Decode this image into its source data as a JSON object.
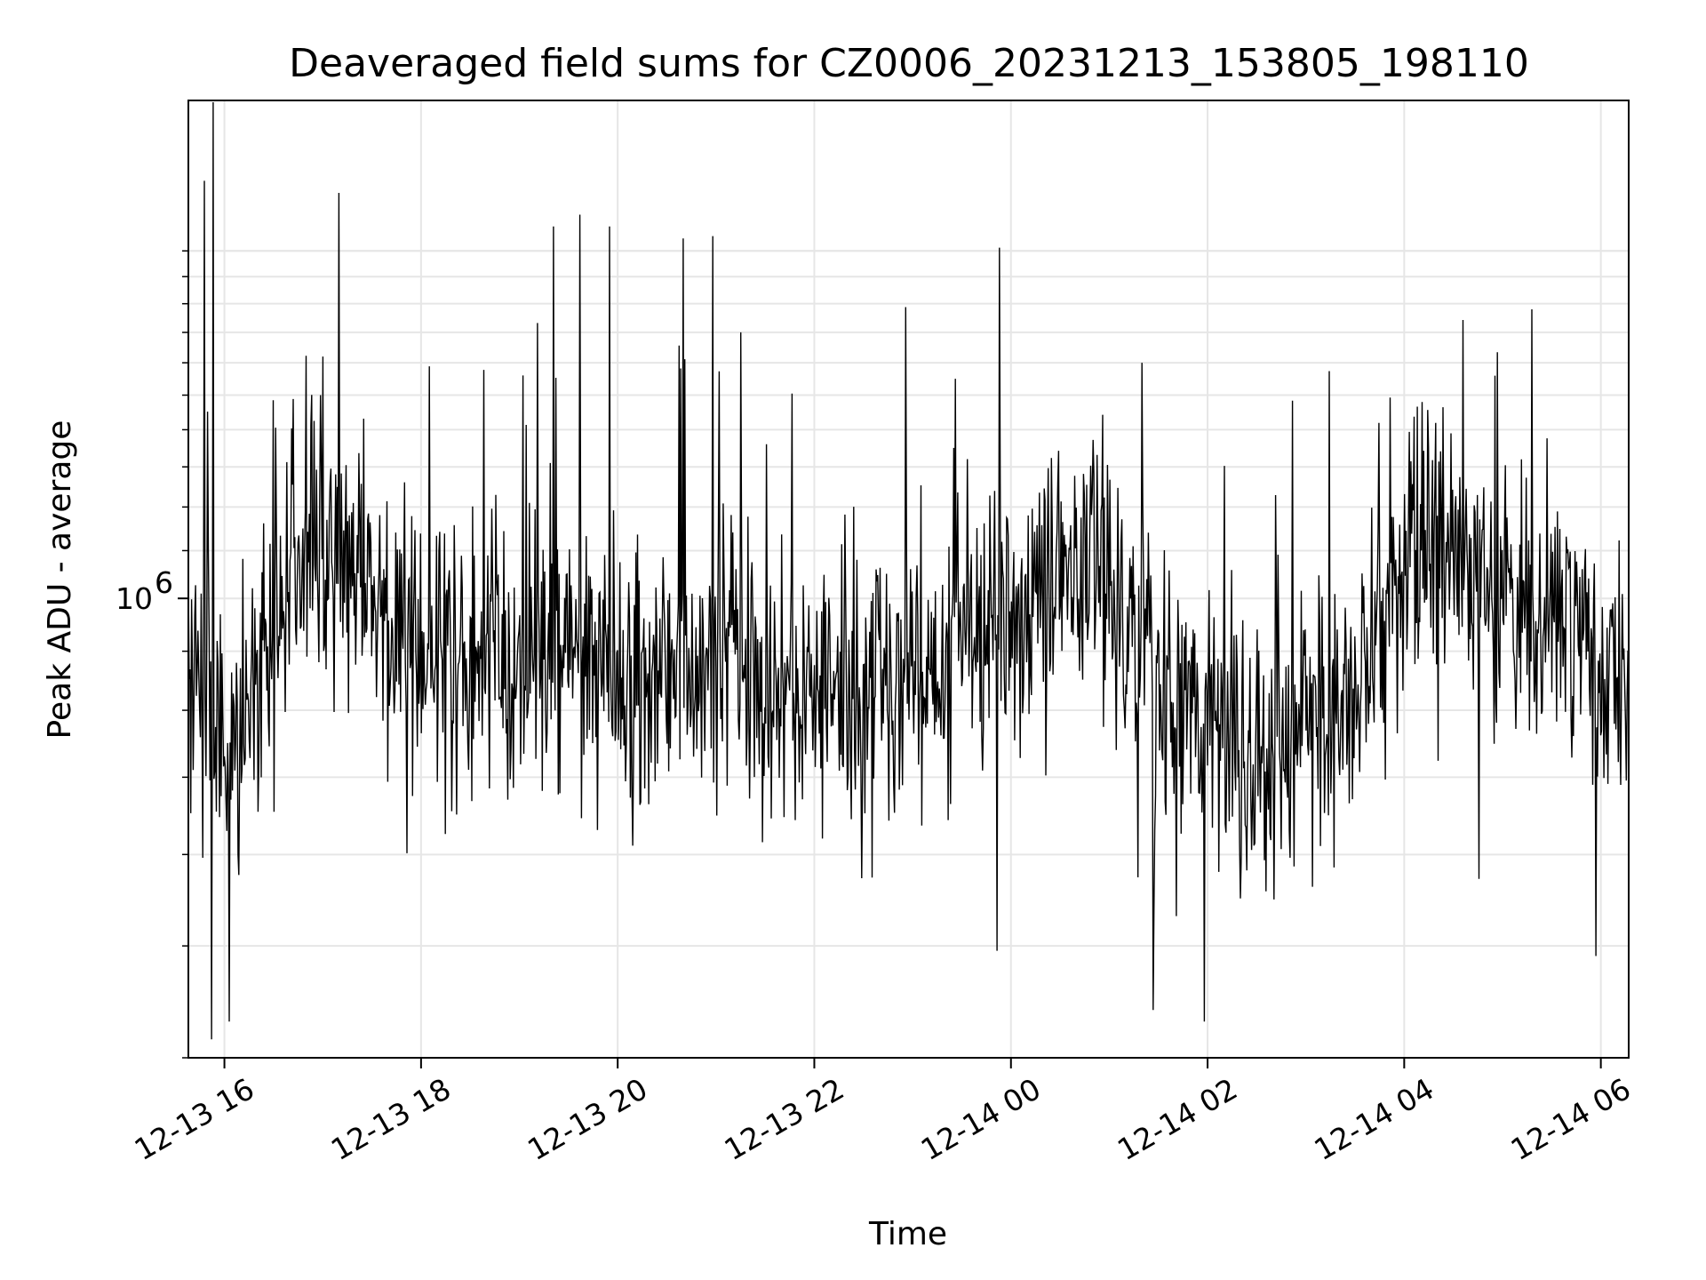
{
  "chart_data": {
    "type": "line",
    "title": "Deaveraged field sums for CZ0006_20231213_153805_198110",
    "xlabel": "Time",
    "ylabel": "Peak ADU - average",
    "y_scale": "log",
    "ylim": [
      400000,
      2700000
    ],
    "xlim": [
      "2023-12-13 15:38",
      "2023-12-14 06:17"
    ],
    "grid": true,
    "line_color": "#000000",
    "x_ticks": [
      {
        "value": "2023-12-13 16:00",
        "label": "12-13 16"
      },
      {
        "value": "2023-12-13 18:00",
        "label": "12-13 18"
      },
      {
        "value": "2023-12-13 20:00",
        "label": "12-13 20"
      },
      {
        "value": "2023-12-13 22:00",
        "label": "12-13 22"
      },
      {
        "value": "2023-12-14 00:00",
        "label": "12-14 00"
      },
      {
        "value": "2023-12-14 02:00",
        "label": "12-14 02"
      },
      {
        "value": "2023-12-14 04:00",
        "label": "12-14 04"
      },
      {
        "value": "2023-12-14 06:00",
        "label": "12-14 06"
      }
    ],
    "y_major_ticks": [
      {
        "value": 1000000,
        "label": "10",
        "exponent": "6"
      }
    ],
    "y_minor_ticks": [
      400000,
      500000,
      600000,
      700000,
      800000,
      900000,
      2000000
    ],
    "trend": [
      [
        "2023-12-13 15:38",
        880000
      ],
      [
        "2023-12-13 15:50",
        800000
      ],
      [
        "2023-12-13 16:00",
        700000
      ],
      [
        "2023-12-13 16:20",
        850000
      ],
      [
        "2023-12-13 16:45",
        1080000
      ],
      [
        "2023-12-13 17:15",
        1080000
      ],
      [
        "2023-12-13 17:45",
        900000
      ],
      [
        "2023-12-13 18:30",
        870000
      ],
      [
        "2023-12-13 19:00",
        900000
      ],
      [
        "2023-12-13 19:30",
        920000
      ],
      [
        "2023-12-13 20:00",
        860000
      ],
      [
        "2023-12-13 21:00",
        880000
      ],
      [
        "2023-12-13 22:00",
        830000
      ],
      [
        "2023-12-13 23:00",
        860000
      ],
      [
        "2023-12-14 00:00",
        960000
      ],
      [
        "2023-12-14 00:50",
        1100000
      ],
      [
        "2023-12-14 01:20",
        880000
      ],
      [
        "2023-12-14 02:00",
        770000
      ],
      [
        "2023-12-14 02:40",
        720000
      ],
      [
        "2023-12-14 03:20",
        820000
      ],
      [
        "2023-12-14 03:50",
        920000
      ],
      [
        "2023-12-14 04:10",
        1130000
      ],
      [
        "2023-12-14 04:45",
        1080000
      ],
      [
        "2023-12-14 05:20",
        920000
      ],
      [
        "2023-12-14 05:50",
        980000
      ],
      [
        "2023-12-14 06:00",
        830000
      ],
      [
        "2023-12-14 06:17",
        860000
      ]
    ],
    "spikes": [
      [
        "2023-12-13 15:48",
        2300000
      ],
      [
        "2023-12-13 15:53",
        2900000
      ],
      [
        "2023-12-13 15:52",
        415000
      ],
      [
        "2023-12-13 16:03",
        430000
      ],
      [
        "2023-12-13 17:00",
        1620000
      ],
      [
        "2023-12-13 19:02",
        1560000
      ],
      [
        "2023-12-13 19:21",
        2100000
      ],
      [
        "2023-12-13 19:37",
        2150000
      ],
      [
        "2023-12-13 19:55",
        2100000
      ],
      [
        "2023-12-13 20:40",
        2050000
      ],
      [
        "2023-12-13 20:58",
        2060000
      ],
      [
        "2023-12-13 21:15",
        1700000
      ],
      [
        "2023-12-13 23:25",
        1350000
      ],
      [
        "2023-12-14 01:20",
        1600000
      ],
      [
        "2023-12-14 01:27",
        440000
      ],
      [
        "2023-12-14 01:58",
        430000
      ],
      [
        "2023-12-14 05:18",
        1780000
      ],
      [
        "2023-12-14 05:57",
        490000
      ]
    ],
    "n_points": 1800
  }
}
